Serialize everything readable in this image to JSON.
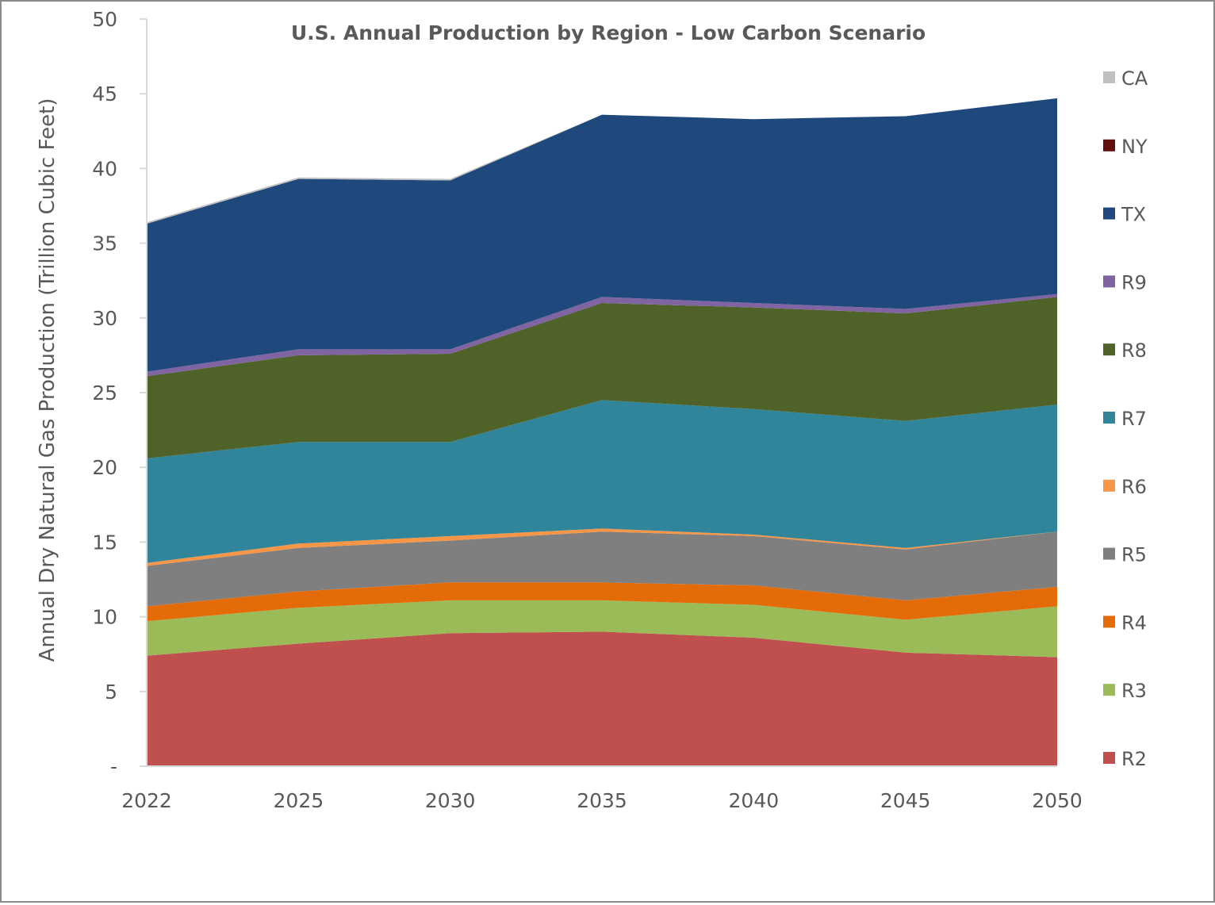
{
  "chart_data": {
    "type": "area",
    "stacked": true,
    "title": "U.S. Annual Production by Region - Low Carbon Scenario",
    "xlabel": "",
    "ylabel": "Annual Dry Natural Gas Production (Trillion Cubic Feet)",
    "ylim": [
      0,
      50
    ],
    "y_ticks": [
      0,
      5,
      10,
      15,
      20,
      25,
      30,
      35,
      40,
      45,
      50
    ],
    "y_tick_labels": [
      "-",
      "5",
      "10",
      "15",
      "20",
      "25",
      "30",
      "35",
      "40",
      "45",
      "50"
    ],
    "categories": [
      "2022",
      "2025",
      "2030",
      "2035",
      "2040",
      "2045",
      "2050"
    ],
    "legend_position": "right",
    "series": [
      {
        "name": "R2",
        "color": "#c0504d",
        "values": [
          7.4,
          8.2,
          8.9,
          9.0,
          8.6,
          7.6,
          7.3
        ]
      },
      {
        "name": "R3",
        "color": "#9bbb59",
        "values": [
          2.3,
          2.4,
          2.2,
          2.1,
          2.2,
          2.2,
          3.4
        ]
      },
      {
        "name": "R4",
        "color": "#e36c09",
        "values": [
          1.0,
          1.1,
          1.2,
          1.2,
          1.3,
          1.3,
          1.3
        ]
      },
      {
        "name": "R5",
        "color": "#7f7f7f",
        "values": [
          2.7,
          2.9,
          2.8,
          3.4,
          3.3,
          3.4,
          3.7
        ]
      },
      {
        "name": "R6",
        "color": "#f79646",
        "values": [
          0.2,
          0.3,
          0.3,
          0.2,
          0.1,
          0.1,
          0.0
        ]
      },
      {
        "name": "R7",
        "color": "#31859b",
        "values": [
          7.0,
          6.8,
          6.3,
          8.6,
          8.4,
          8.5,
          8.5
        ]
      },
      {
        "name": "R8",
        "color": "#4f6228",
        "values": [
          5.5,
          5.8,
          5.9,
          6.5,
          6.8,
          7.2,
          7.2
        ]
      },
      {
        "name": "R9",
        "color": "#8064a2",
        "values": [
          0.3,
          0.4,
          0.3,
          0.4,
          0.3,
          0.3,
          0.2
        ]
      },
      {
        "name": "TX",
        "color": "#1f497d",
        "values": [
          9.9,
          11.4,
          11.3,
          12.2,
          12.3,
          12.9,
          13.1
        ]
      },
      {
        "name": "NY",
        "color": "#630f0f",
        "values": [
          0.0,
          0.0,
          0.0,
          0.0,
          0.0,
          0.0,
          0.0
        ]
      },
      {
        "name": "CA",
        "color": "#bfbfbf",
        "values": [
          0.1,
          0.1,
          0.1,
          0.0,
          0.0,
          0.0,
          0.0
        ]
      }
    ]
  }
}
